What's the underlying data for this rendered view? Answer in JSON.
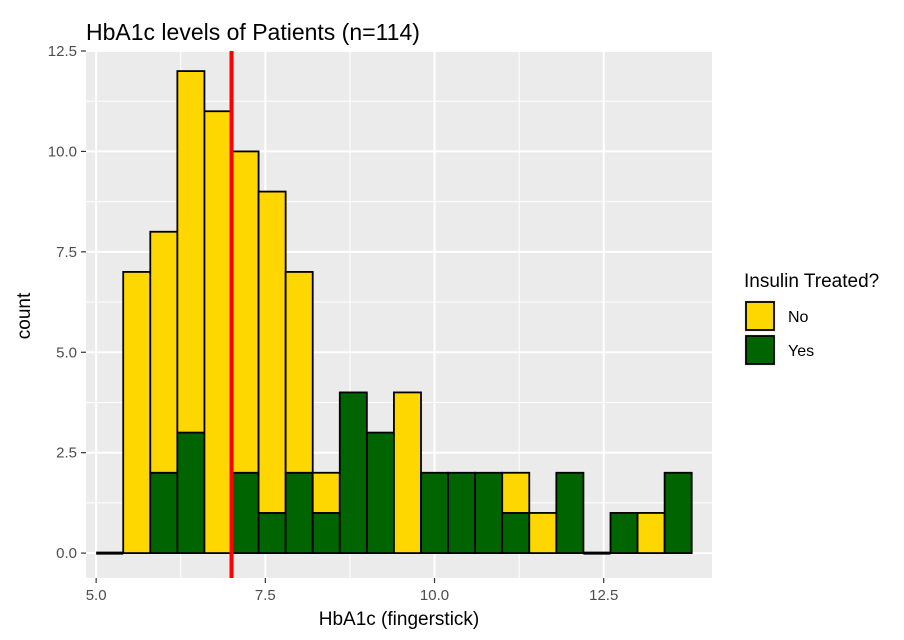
{
  "chart_data": {
    "type": "bar",
    "subtype": "stacked-histogram",
    "title": "HbA1c levels of Patients (n=114)",
    "xlabel": "HbA1c (fingerstick)",
    "ylabel": "count",
    "xlim": [
      4.85,
      14.1
    ],
    "ylim": [
      -0.62,
      12.5
    ],
    "x_ticks": [
      5.0,
      7.5,
      10.0,
      12.5
    ],
    "x_tick_labels": [
      "5.0",
      "7.5",
      "10.0",
      "12.5"
    ],
    "y_ticks": [
      0.0,
      2.5,
      5.0,
      7.5,
      10.0,
      12.5
    ],
    "y_tick_labels": [
      "0.0",
      "2.5",
      "5.0",
      "7.5",
      "10.0",
      "12.5"
    ],
    "grid": true,
    "bin_width": 0.4,
    "bin_starts": [
      5.0,
      5.4,
      5.8,
      6.2,
      6.6,
      7.0,
      7.4,
      7.8,
      8.2,
      8.6,
      9.0,
      9.4,
      9.8,
      10.2,
      10.6,
      11.0,
      11.4,
      11.8,
      12.2,
      12.6,
      13.0,
      13.4
    ],
    "series": [
      {
        "name": "No",
        "color": "#FFD700",
        "values": [
          0,
          7,
          6,
          9,
          11,
          8,
          8,
          5,
          1,
          0,
          0,
          4,
          0,
          0,
          0,
          1,
          1,
          0,
          0,
          0,
          1,
          0
        ]
      },
      {
        "name": "Yes",
        "color": "#006400",
        "values": [
          0,
          0,
          2,
          3,
          0,
          2,
          1,
          2,
          1,
          4,
          3,
          0,
          2,
          2,
          2,
          1,
          0,
          2,
          0,
          1,
          0,
          2
        ]
      }
    ],
    "reference_line": {
      "x": 7.0,
      "color": "#FF0000"
    },
    "legend": {
      "title": "Insulin Treated?",
      "position": "right"
    }
  },
  "colors": {
    "panel_background": "#EBEBEB",
    "grid": "#FFFFFF",
    "bar_outline": "#000000"
  }
}
